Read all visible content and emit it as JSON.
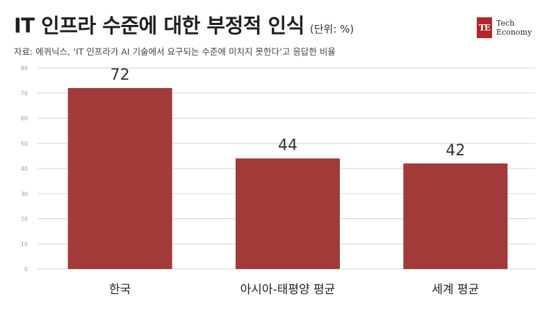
{
  "header": {
    "title": "IT 인프라 수준에 대한 부정적 인식",
    "unit": "(단위: %)",
    "source": "자료: 에퀴닉스, ‘IT 인프라가 AI 기술에서 요구되는 수준에 미치지 못한다’고 응답한 비율"
  },
  "logo": {
    "mark": "TE",
    "line1": "Tech",
    "line2": "Economy"
  },
  "colors": {
    "bar": "#a33a3a",
    "logo": "#b3262b",
    "grid": "#e2cfcf"
  },
  "chart_data": {
    "type": "bar",
    "categories": [
      "한국",
      "아시아-태평양 평균",
      "세계 평균"
    ],
    "values": [
      72,
      44,
      42
    ],
    "ylim": [
      0,
      80
    ],
    "yticks": [
      0,
      10,
      20,
      30,
      40,
      50,
      60,
      70,
      80
    ],
    "grid": true,
    "legend": "none",
    "data_labels": true
  }
}
